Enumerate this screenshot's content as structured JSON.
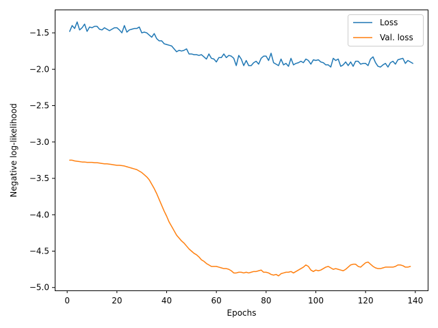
{
  "chart_data": {
    "type": "line",
    "title": "",
    "xlabel": "Epochs",
    "ylabel": "Negative log-likelihood",
    "xlim": [
      -5,
      145
    ],
    "ylim": [
      -5.04,
      -1.18
    ],
    "xticks": [
      0,
      20,
      40,
      60,
      80,
      100,
      120,
      140
    ],
    "xtick_labels": [
      "0",
      "20",
      "40",
      "60",
      "80",
      "100",
      "120",
      "140"
    ],
    "yticks": [
      -5.0,
      -4.5,
      -4.0,
      -3.5,
      -3.0,
      -2.5,
      -2.0,
      -1.5
    ],
    "ytick_labels": [
      "−5.0",
      "−4.5",
      "−4.0",
      "−3.5",
      "−3.0",
      "−2.5",
      "−2.0",
      "−1.5"
    ],
    "grid": false,
    "legend_position": "top-right",
    "series": [
      {
        "name": "Loss",
        "color": "#1f77b4",
        "x_start": 1,
        "x_step": 1,
        "values": [
          -1.48,
          -1.4,
          -1.44,
          -1.35,
          -1.46,
          -1.43,
          -1.38,
          -1.48,
          -1.42,
          -1.43,
          -1.41,
          -1.41,
          -1.45,
          -1.46,
          -1.43,
          -1.45,
          -1.47,
          -1.45,
          -1.43,
          -1.43,
          -1.46,
          -1.5,
          -1.4,
          -1.49,
          -1.46,
          -1.45,
          -1.44,
          -1.44,
          -1.42,
          -1.5,
          -1.49,
          -1.5,
          -1.53,
          -1.56,
          -1.51,
          -1.58,
          -1.61,
          -1.61,
          -1.65,
          -1.66,
          -1.67,
          -1.68,
          -1.72,
          -1.76,
          -1.74,
          -1.75,
          -1.74,
          -1.72,
          -1.79,
          -1.79,
          -1.8,
          -1.8,
          -1.81,
          -1.8,
          -1.83,
          -1.86,
          -1.79,
          -1.85,
          -1.86,
          -1.9,
          -1.84,
          -1.84,
          -1.79,
          -1.84,
          -1.81,
          -1.82,
          -1.85,
          -1.95,
          -1.81,
          -1.86,
          -1.95,
          -1.88,
          -1.95,
          -1.95,
          -1.91,
          -1.89,
          -1.93,
          -1.85,
          -1.82,
          -1.82,
          -1.88,
          -1.78,
          -1.91,
          -1.93,
          -1.95,
          -1.86,
          -1.94,
          -1.92,
          -1.96,
          -1.85,
          -1.94,
          -1.92,
          -1.91,
          -1.89,
          -1.91,
          -1.86,
          -1.88,
          -1.93,
          -1.87,
          -1.88,
          -1.87,
          -1.9,
          -1.91,
          -1.94,
          -1.94,
          -1.97,
          -1.85,
          -1.88,
          -1.86,
          -1.96,
          -1.94,
          -1.9,
          -1.95,
          -1.9,
          -1.96,
          -1.89,
          -1.89,
          -1.93,
          -1.92,
          -1.92,
          -1.95,
          -1.86,
          -1.83,
          -1.91,
          -1.96,
          -1.97,
          -1.94,
          -1.92,
          -1.97,
          -1.91,
          -1.89,
          -1.93,
          -1.87,
          -1.86,
          -1.85,
          -1.92,
          -1.88,
          -1.9,
          -1.92
        ]
      },
      {
        "name": "Val. loss",
        "color": "#ff7f0e",
        "x_start": 1,
        "x_step": 1,
        "values": [
          -3.25,
          -3.25,
          -3.26,
          -3.265,
          -3.27,
          -3.275,
          -3.275,
          -3.28,
          -3.28,
          -3.28,
          -3.285,
          -3.285,
          -3.29,
          -3.295,
          -3.3,
          -3.3,
          -3.305,
          -3.31,
          -3.315,
          -3.32,
          -3.32,
          -3.325,
          -3.33,
          -3.34,
          -3.35,
          -3.36,
          -3.37,
          -3.38,
          -3.4,
          -3.42,
          -3.45,
          -3.48,
          -3.52,
          -3.58,
          -3.64,
          -3.71,
          -3.79,
          -3.87,
          -3.95,
          -4.02,
          -4.1,
          -4.16,
          -4.22,
          -4.28,
          -4.32,
          -4.36,
          -4.39,
          -4.43,
          -4.47,
          -4.5,
          -4.53,
          -4.55,
          -4.58,
          -4.62,
          -4.64,
          -4.67,
          -4.69,
          -4.71,
          -4.71,
          -4.71,
          -4.72,
          -4.73,
          -4.74,
          -4.74,
          -4.75,
          -4.77,
          -4.8,
          -4.8,
          -4.79,
          -4.79,
          -4.8,
          -4.79,
          -4.8,
          -4.79,
          -4.78,
          -4.78,
          -4.77,
          -4.76,
          -4.79,
          -4.79,
          -4.8,
          -4.82,
          -4.83,
          -4.82,
          -4.84,
          -4.81,
          -4.8,
          -4.79,
          -4.79,
          -4.78,
          -4.8,
          -4.78,
          -4.76,
          -4.74,
          -4.72,
          -4.69,
          -4.71,
          -4.76,
          -4.78,
          -4.76,
          -4.77,
          -4.76,
          -4.74,
          -4.72,
          -4.71,
          -4.73,
          -4.75,
          -4.74,
          -4.75,
          -4.76,
          -4.77,
          -4.75,
          -4.72,
          -4.69,
          -4.68,
          -4.68,
          -4.71,
          -4.72,
          -4.69,
          -4.66,
          -4.65,
          -4.68,
          -4.71,
          -4.73,
          -4.74,
          -4.74,
          -4.73,
          -4.72,
          -4.72,
          -4.72,
          -4.72,
          -4.71,
          -4.69,
          -4.69,
          -4.7,
          -4.72,
          -4.72,
          -4.71
        ]
      }
    ]
  }
}
